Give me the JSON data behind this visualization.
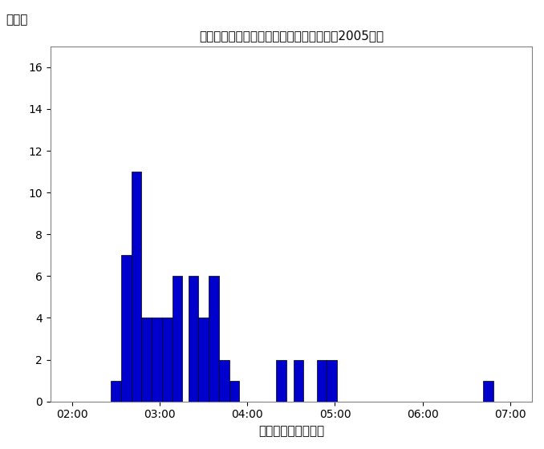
{
  "title": "パフォーマンス時間ごとの歌手数の分布（2005年）",
  "ylabel": "歌手数",
  "xlabel": "パフォーマンス時間",
  "bar_color": "#0000cc",
  "bar_edgecolor": "#000000",
  "ylim": [
    0,
    17
  ],
  "yticks": [
    0,
    2,
    4,
    6,
    8,
    10,
    12,
    14,
    16
  ],
  "xlim": [
    105,
    435
  ],
  "xtick_minutes": [
    120,
    180,
    240,
    300,
    360,
    420
  ],
  "xtick_labels": [
    "02:00",
    "03:00",
    "04:00",
    "05:00",
    "06:00",
    "07:00"
  ],
  "bin_width": 7,
  "bars": [
    {
      "minute": 150,
      "count": 1
    },
    {
      "minute": 157,
      "count": 7
    },
    {
      "minute": 164,
      "count": 11
    },
    {
      "minute": 171,
      "count": 4
    },
    {
      "minute": 178,
      "count": 4
    },
    {
      "minute": 185,
      "count": 4
    },
    {
      "minute": 192,
      "count": 6
    },
    {
      "minute": 203,
      "count": 6
    },
    {
      "minute": 210,
      "count": 4
    },
    {
      "minute": 217,
      "count": 6
    },
    {
      "minute": 224,
      "count": 2
    },
    {
      "minute": 231,
      "count": 1
    },
    {
      "minute": 263,
      "count": 2
    },
    {
      "minute": 275,
      "count": 2
    },
    {
      "minute": 291,
      "count": 2
    },
    {
      "minute": 298,
      "count": 2
    },
    {
      "minute": 405,
      "count": 1
    }
  ],
  "background_color": "#ffffff",
  "title_fontsize": 11,
  "tick_fontsize": 10,
  "label_fontsize": 11
}
